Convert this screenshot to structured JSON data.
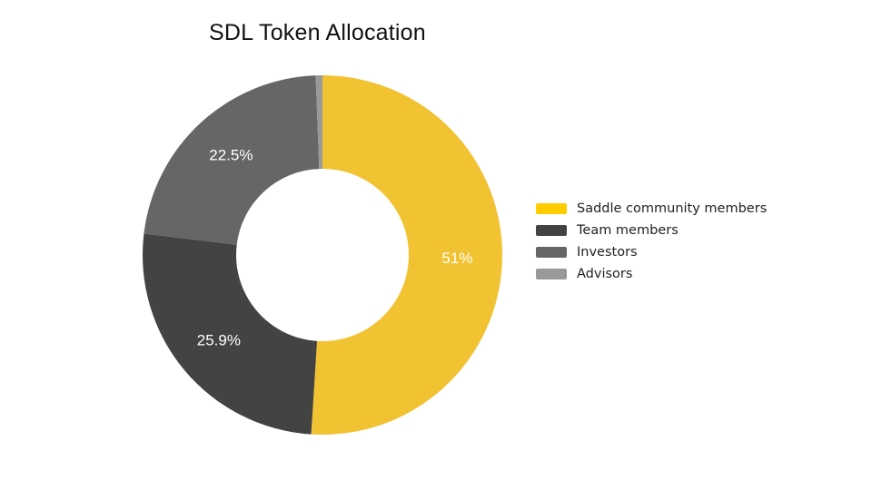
{
  "chart_data": {
    "type": "pie",
    "variant": "donut",
    "title": "SDL Token Allocation",
    "categories": [
      "Saddle community members",
      "Team members",
      "Investors",
      "Advisors"
    ],
    "values": [
      51,
      25.9,
      22.5,
      0.6
    ],
    "value_labels": [
      "51%",
      "25.9%",
      "22.5%",
      ""
    ],
    "colors": [
      "#F1C232",
      "#434343",
      "#666666",
      "#999999"
    ],
    "legend_colors": [
      "#FFCC00",
      "#434343",
      "#666666",
      "#999999"
    ],
    "legend_position": "right"
  }
}
